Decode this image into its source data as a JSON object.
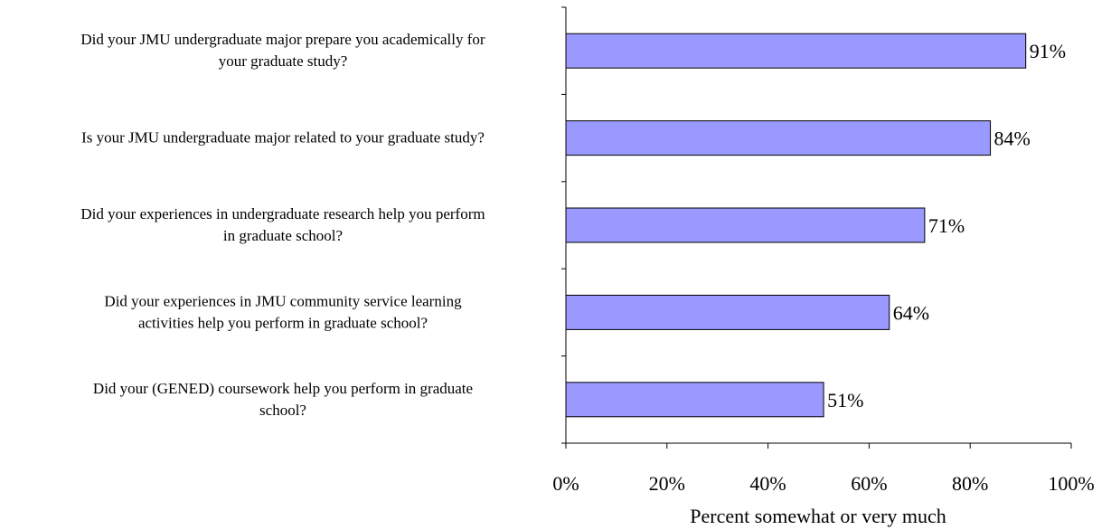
{
  "chart_data": {
    "type": "bar",
    "orientation": "horizontal",
    "categories": [
      [
        "Did your JMU undergraduate major prepare you academically for",
        "your graduate study?"
      ],
      [
        "Is your JMU undergraduate major related to your graduate study?"
      ],
      [
        "Did your experiences in undergraduate research help you perform",
        "in graduate school?"
      ],
      [
        "Did your experiences in JMU community service learning",
        "activities help you perform in graduate school?"
      ],
      [
        "Did your (GENED) coursework help you perform in graduate",
        "school?"
      ]
    ],
    "values": [
      91,
      84,
      71,
      64,
      51
    ],
    "data_labels": [
      "91%",
      "84%",
      "71%",
      "64%",
      "51%"
    ],
    "x_ticks": [
      "0%",
      "20%",
      "40%",
      "60%",
      "80%",
      "100%"
    ],
    "xlim": [
      0,
      100
    ],
    "xlabel": "Percent somewhat or very much",
    "bar_color": "#9999ff",
    "bar_stroke": "#000000",
    "grid": false,
    "legend": false
  }
}
